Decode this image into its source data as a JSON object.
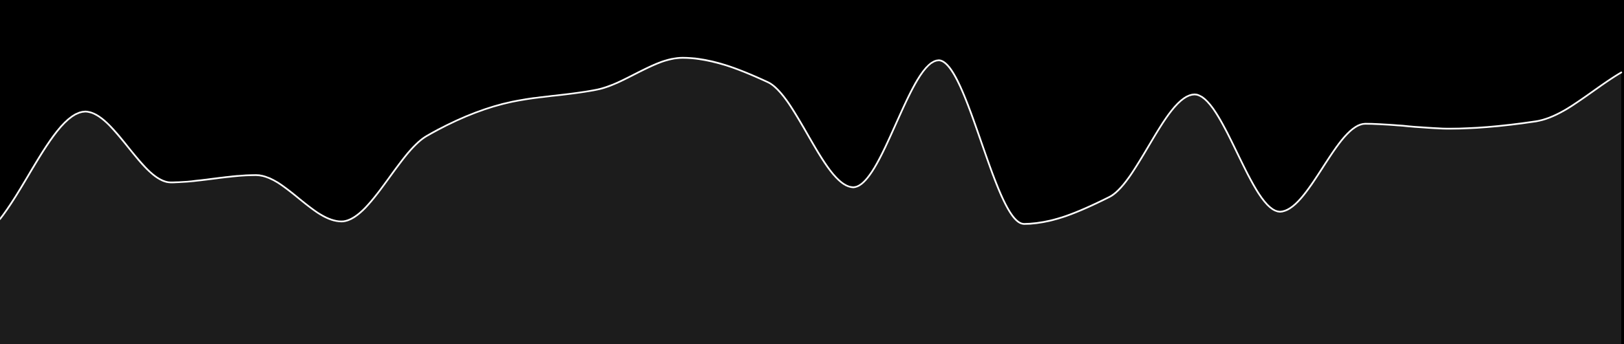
{
  "chart_data": {
    "type": "area",
    "title": "",
    "xlabel": "",
    "ylabel": "",
    "x": [
      0,
      1,
      2,
      3,
      4,
      5,
      6,
      7,
      8,
      9,
      10,
      11,
      12,
      13,
      14,
      15,
      16,
      17,
      18,
      19
    ],
    "values": [
      0.23,
      0.67,
      0.38,
      0.41,
      0.22,
      0.57,
      0.71,
      0.76,
      0.89,
      0.79,
      0.36,
      0.88,
      0.21,
      0.32,
      0.74,
      0.26,
      0.62,
      0.6,
      0.63,
      0.83
    ],
    "xlim": [
      0,
      19
    ],
    "ylim": [
      0,
      1
    ],
    "grid": false,
    "legend": "none",
    "colors": {
      "background": "#000000",
      "fill": "#1c1c1c",
      "line": "#ffffff"
    }
  }
}
